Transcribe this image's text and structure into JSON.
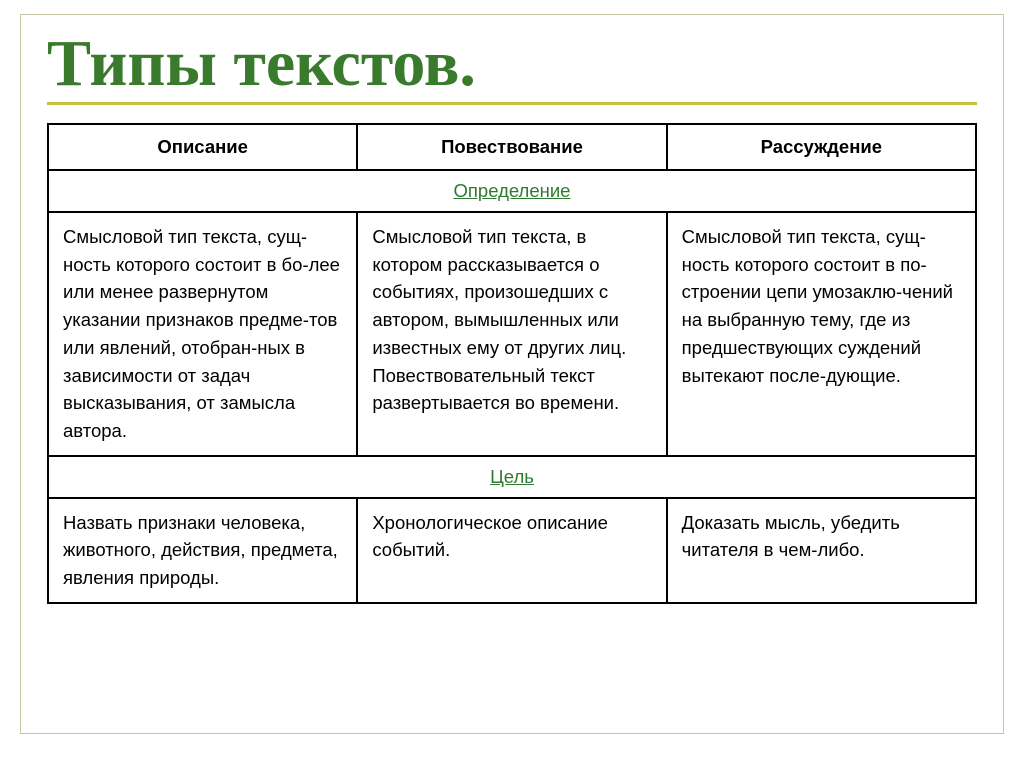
{
  "title": "Типы текстов.",
  "title_color": "#3a7a2c",
  "rule_color": "#cabf46",
  "table": {
    "columns": [
      "Описание",
      "Повествование",
      "Рассуждение"
    ],
    "sections": [
      {
        "label": "Определение",
        "cells": [
          "Смысловой тип текста, сущ-ность которого состоит в бо-лее или менее развернутом указании признаков предме-тов или явлений, отобран-ных в зависимости от задач высказывания, от замысла автора.",
          "Смысловой тип текста, в котором рассказывается о событиях, произошедших с автором, вымышленных или известных ему от других лиц. Повествовательный текст развертывается во времени.",
          "Смысловой тип текста, сущ-ность которого состоит в по-строении цепи умозаклю-чений на выбранную тему, где из предшествующих суждений  вытекают после-дующие."
        ]
      },
      {
        "label": "Цель",
        "cells": [
          "Назвать признаки человека, животного, действия, предмета, явления природы.",
          "Хронологическое описание событий.",
          "Доказать мысль, убедить читателя в чем-либо."
        ]
      }
    ]
  }
}
